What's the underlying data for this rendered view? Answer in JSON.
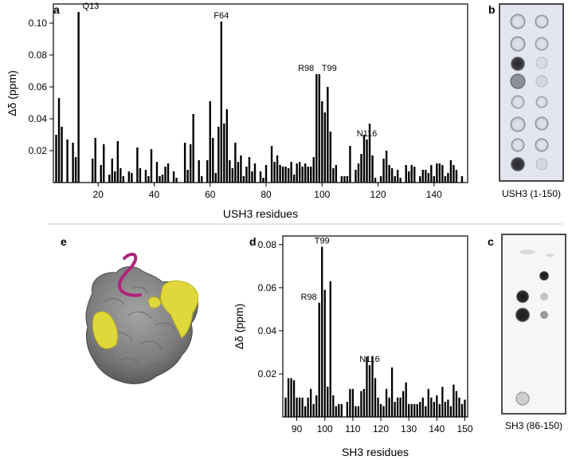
{
  "panel_labels": {
    "a": "a",
    "b": "b",
    "c": "c",
    "d": "d",
    "e": "e"
  },
  "captions": {
    "b": "USH3 (1-150)",
    "c": "SH3 (86-150)"
  },
  "colors": {
    "bar": "#000000",
    "protein_surface": "#8a8a8a",
    "highlight": "#e0d83a",
    "peptide": "#b0247a",
    "membrane_b": "#dfe1ea",
    "membrane_c": "#f6f6f6"
  },
  "chart_data": [
    {
      "id": "a",
      "type": "bar",
      "xlabel": "USH3 residues",
      "ylabel": "Δδ (ppm)",
      "xlim": [
        4,
        152
      ],
      "ylim": [
        0,
        0.112
      ],
      "xticks": [
        20,
        40,
        60,
        80,
        100,
        120,
        140
      ],
      "xtick_labels": [
        "20",
        "40",
        "60",
        "80",
        "100",
        "120",
        "140"
      ],
      "yticks": [
        0.02,
        0.04,
        0.06,
        0.08,
        0.1
      ],
      "ytick_labels": [
        "0.02",
        "0.04",
        "0.06",
        "0.08",
        "0.10"
      ],
      "x": [
        5,
        6,
        7,
        9,
        11,
        12,
        13,
        18,
        19,
        21,
        22,
        24,
        25,
        26,
        27,
        28,
        29,
        31,
        32,
        34,
        35,
        37,
        38,
        39,
        41,
        42,
        43,
        44,
        45,
        47,
        48,
        51,
        52,
        53,
        54,
        56,
        57,
        59,
        60,
        61,
        62,
        63,
        64,
        65,
        66,
        67,
        68,
        69,
        70,
        71,
        72,
        73,
        74,
        75,
        76,
        78,
        79,
        80,
        82,
        83,
        84,
        85,
        86,
        87,
        88,
        89,
        90,
        91,
        92,
        93,
        94,
        95,
        96,
        97,
        98,
        99,
        100,
        101,
        102,
        103,
        104,
        105,
        107,
        108,
        109,
        110,
        112,
        113,
        114,
        115,
        116,
        117,
        118,
        119,
        121,
        122,
        123,
        124,
        125,
        126,
        127,
        128,
        130,
        131,
        132,
        133,
        135,
        136,
        137,
        138,
        139,
        140,
        141,
        142,
        143,
        144,
        145,
        146,
        147,
        148,
        150
      ],
      "values": [
        0.03,
        0.053,
        0.035,
        0.027,
        0.025,
        0.016,
        0.107,
        0.015,
        0.028,
        0.011,
        0.024,
        0.005,
        0.015,
        0.007,
        0.026,
        0.009,
        0.004,
        0.007,
        0.006,
        0.022,
        0.009,
        0.008,
        0.004,
        0.021,
        0.013,
        0.004,
        0.005,
        0.01,
        0.012,
        0.007,
        0.003,
        0.025,
        0.008,
        0.024,
        0.043,
        0.014,
        0.004,
        0.014,
        0.051,
        0.028,
        0.006,
        0.035,
        0.101,
        0.037,
        0.046,
        0.014,
        0.009,
        0.025,
        0.013,
        0.017,
        0.004,
        0.01,
        0.016,
        0.007,
        0.012,
        0.007,
        0.003,
        0.011,
        0.023,
        0.013,
        0.017,
        0.011,
        0.01,
        0.01,
        0.009,
        0.013,
        0.005,
        0.012,
        0.013,
        0.01,
        0.012,
        0.01,
        0.01,
        0.016,
        0.068,
        0.068,
        0.051,
        0.044,
        0.06,
        0.032,
        0.009,
        0.011,
        0.004,
        0.004,
        0.004,
        0.023,
        0.008,
        0.012,
        0.018,
        0.03,
        0.027,
        0.037,
        0.017,
        0.003,
        0.004,
        0.015,
        0.02,
        0.011,
        0.009,
        0.004,
        0.008,
        0.003,
        0.011,
        0.007,
        0.011,
        0.01,
        0.004,
        0.008,
        0.008,
        0.006,
        0.011,
        0.004,
        0.012,
        0.012,
        0.011,
        0.004,
        0.006,
        0.014,
        0.011,
        0.008,
        0.004
      ],
      "annotations": [
        {
          "x": 13,
          "text": "Q13"
        },
        {
          "x": 64,
          "text": "F64"
        },
        {
          "x": 98,
          "text": "R98"
        },
        {
          "x": 99,
          "text": "T99"
        },
        {
          "x": 116,
          "text": "N116"
        }
      ]
    },
    {
      "id": "d",
      "type": "bar",
      "xlabel": "SH3 residues",
      "ylabel": "Δδ (ppm)",
      "xlim": [
        85,
        151
      ],
      "ylim": [
        0,
        0.084
      ],
      "xticks": [
        90,
        100,
        110,
        120,
        130,
        140,
        150
      ],
      "xtick_labels": [
        "90",
        "100",
        "110",
        "120",
        "130",
        "140",
        "150"
      ],
      "yticks": [
        0.02,
        0.04,
        0.06,
        0.08
      ],
      "ytick_labels": [
        "0.02",
        "0.04",
        "0.06",
        "0.08"
      ],
      "x": [
        86,
        87,
        88,
        89,
        90,
        91,
        92,
        93,
        94,
        95,
        96,
        97,
        98,
        99,
        100,
        101,
        102,
        103,
        104,
        105,
        106,
        108,
        109,
        110,
        111,
        112,
        113,
        114,
        115,
        116,
        117,
        118,
        119,
        120,
        121,
        122,
        123,
        124,
        125,
        126,
        127,
        128,
        129,
        130,
        131,
        132,
        133,
        134,
        135,
        136,
        137,
        138,
        139,
        140,
        141,
        142,
        143,
        144,
        145,
        146,
        147,
        148,
        149,
        150
      ],
      "values": [
        0.009,
        0.018,
        0.018,
        0.017,
        0.009,
        0.009,
        0.009,
        0.005,
        0.009,
        0.013,
        0.006,
        0.01,
        0.053,
        0.079,
        0.059,
        0.014,
        0.063,
        0.01,
        0.005,
        0.006,
        0.006,
        0.007,
        0.013,
        0.013,
        0.005,
        0.005,
        0.012,
        0.013,
        0.028,
        0.024,
        0.028,
        0.018,
        0.009,
        0.006,
        0.005,
        0.013,
        0.009,
        0.023,
        0.007,
        0.009,
        0.009,
        0.012,
        0.016,
        0.006,
        0.006,
        0.006,
        0.006,
        0.007,
        0.009,
        0.005,
        0.013,
        0.009,
        0.007,
        0.01,
        0.006,
        0.014,
        0.007,
        0.008,
        0.005,
        0.015,
        0.012,
        0.009,
        0.006,
        0.008
      ],
      "annotations": [
        {
          "x": 98,
          "text": "R98"
        },
        {
          "x": 99,
          "text": "T99"
        },
        {
          "x": 116,
          "text": "N116"
        }
      ]
    }
  ]
}
